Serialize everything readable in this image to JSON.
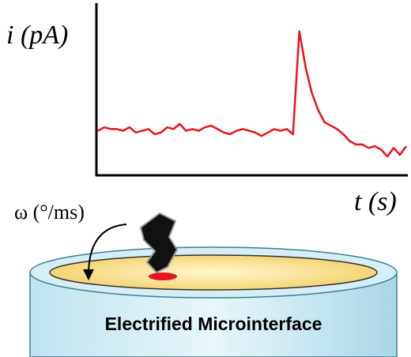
{
  "chart_data": {
    "type": "line",
    "y_label": "i (pA)",
    "x_label": "t (s)",
    "color": "#e8141c",
    "ylim": [
      0,
      100
    ],
    "values": [
      26,
      28,
      27,
      27,
      26,
      28,
      25,
      26,
      27,
      24,
      25,
      28,
      27,
      30,
      26,
      27,
      26,
      28,
      29,
      27,
      25,
      24,
      26,
      27,
      26,
      25,
      23,
      25,
      27,
      26,
      27,
      24,
      84,
      63,
      48,
      38,
      31,
      29,
      27,
      24,
      20,
      18,
      18,
      16,
      17,
      15,
      11,
      16,
      12,
      17
    ]
  },
  "diagram": {
    "rotation_label": "ω (°/ms)",
    "cylinder_label": "Electrified Microinterface"
  }
}
